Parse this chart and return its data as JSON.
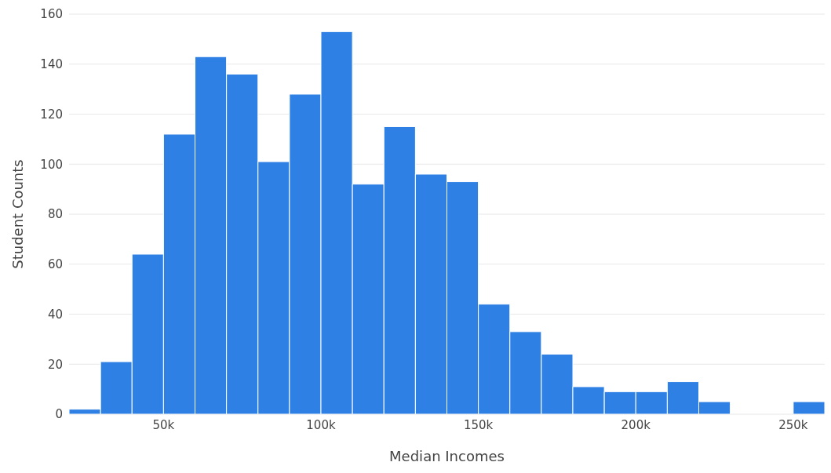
{
  "chart_data": {
    "type": "histogram",
    "xlabel": "Median Incomes",
    "ylabel": "Student Counts",
    "color": "#2f80e4",
    "bins": [
      20000,
      30000,
      40000,
      50000,
      60000,
      70000,
      80000,
      90000,
      100000,
      110000,
      120000,
      130000,
      140000,
      150000,
      160000,
      170000,
      180000,
      190000,
      200000,
      210000,
      220000,
      230000,
      240000,
      250000,
      260000
    ],
    "values": [
      2,
      21,
      64,
      112,
      143,
      136,
      101,
      128,
      153,
      92,
      115,
      96,
      93,
      44,
      33,
      24,
      11,
      9,
      9,
      13,
      5,
      0,
      0,
      5
    ],
    "xlim": [
      20000,
      260000
    ],
    "ylim": [
      0,
      160
    ],
    "xticks": [
      {
        "value": 50000,
        "label": "50k"
      },
      {
        "value": 100000,
        "label": "100k"
      },
      {
        "value": 150000,
        "label": "150k"
      },
      {
        "value": 200000,
        "label": "200k"
      },
      {
        "value": 250000,
        "label": "250k"
      }
    ],
    "yticks": [
      0,
      20,
      40,
      60,
      80,
      100,
      120,
      140,
      160
    ],
    "grid": "y"
  }
}
